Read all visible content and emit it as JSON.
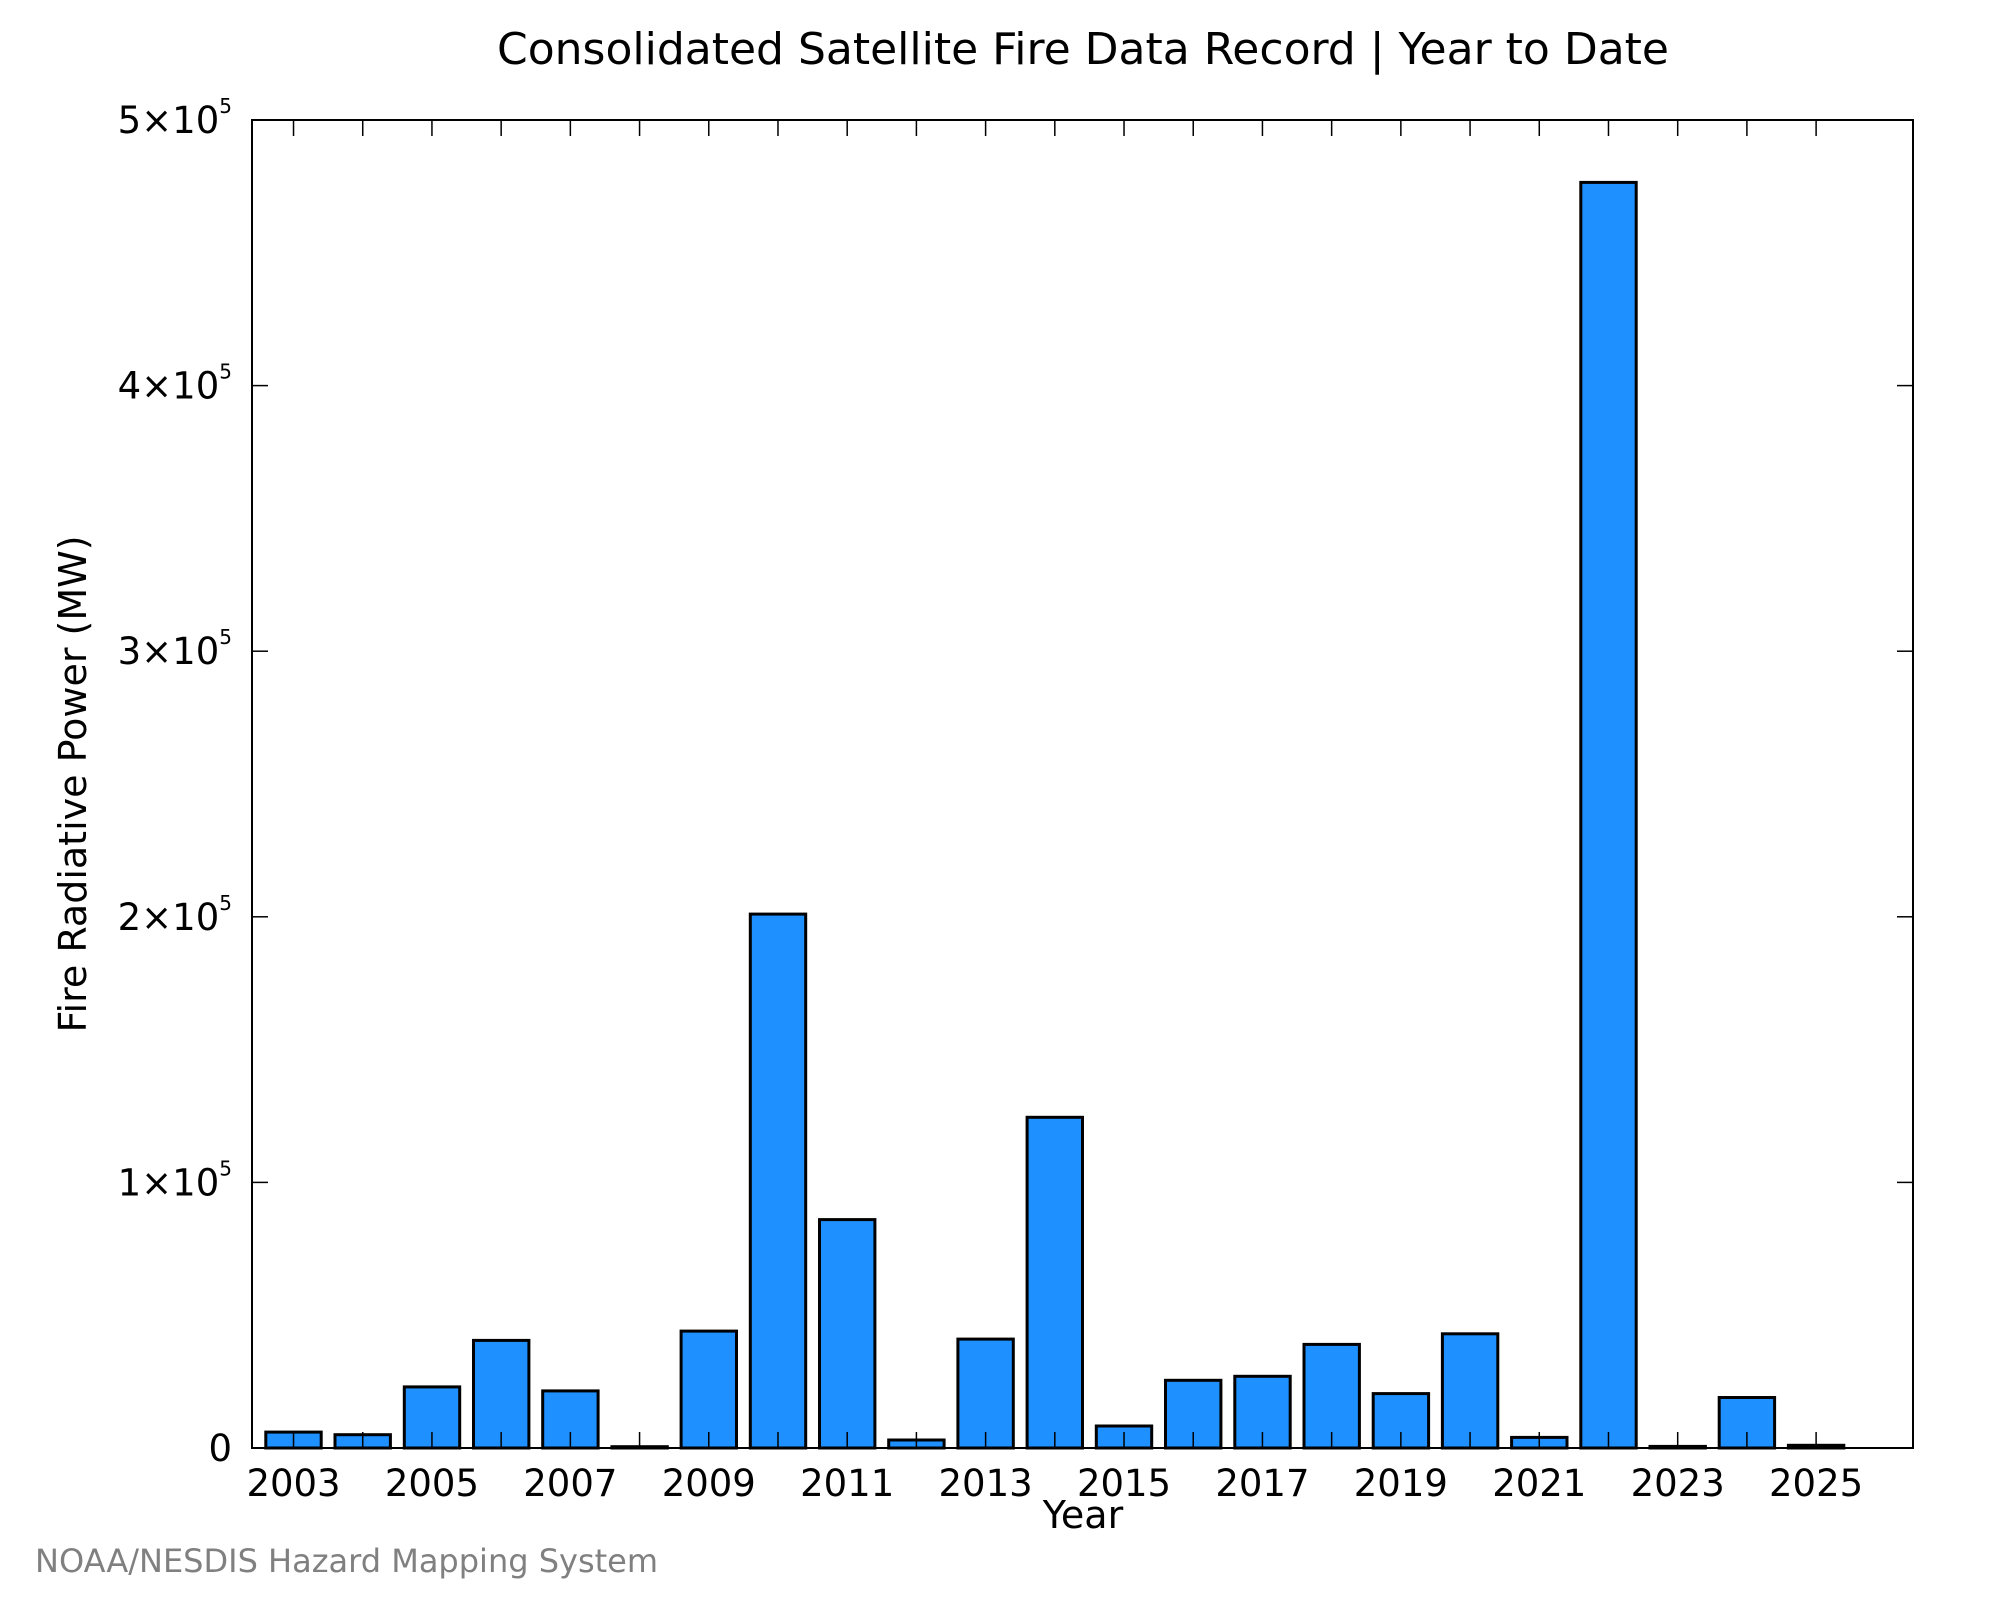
{
  "chart_data": {
    "type": "bar",
    "title": "Consolidated Satellite Fire Data Record | Year to Date",
    "xlabel": "Year",
    "ylabel": "Fire Radiative Power (MW)",
    "credit": "NOAA/NESDIS Hazard Mapping System",
    "bar_color": "#1e90ff",
    "categories": [
      "2003",
      "2004",
      "2005",
      "2006",
      "2007",
      "2008",
      "2009",
      "2010",
      "2011",
      "2012",
      "2013",
      "2014",
      "2015",
      "2016",
      "2017",
      "2018",
      "2019",
      "2020",
      "2021",
      "2022",
      "2023",
      "2024",
      "2025"
    ],
    "values": [
      6000,
      5000,
      23000,
      40500,
      21500,
      500,
      44000,
      201000,
      86000,
      3000,
      41000,
      124500,
      8300,
      25500,
      27000,
      39000,
      20500,
      43000,
      4000,
      476500,
      600,
      19000,
      1000
    ],
    "x_tick_labels": [
      "2003",
      "2005",
      "2007",
      "2009",
      "2011",
      "2013",
      "2015",
      "2017",
      "2019",
      "2021",
      "2023",
      "2025"
    ],
    "y_ticks": [
      {
        "value": 0,
        "label": "0",
        "exp": ""
      },
      {
        "value": 100000,
        "label": "1×10",
        "exp": "5"
      },
      {
        "value": 200000,
        "label": "2×10",
        "exp": "5"
      },
      {
        "value": 300000,
        "label": "3×10",
        "exp": "5"
      },
      {
        "value": 400000,
        "label": "4×10",
        "exp": "5"
      },
      {
        "value": 500000,
        "label": "5×10",
        "exp": "5"
      }
    ],
    "ylim": [
      0,
      500000
    ],
    "xlim": [
      2002.4,
      2026.4
    ],
    "grid": false,
    "legend": "none"
  }
}
